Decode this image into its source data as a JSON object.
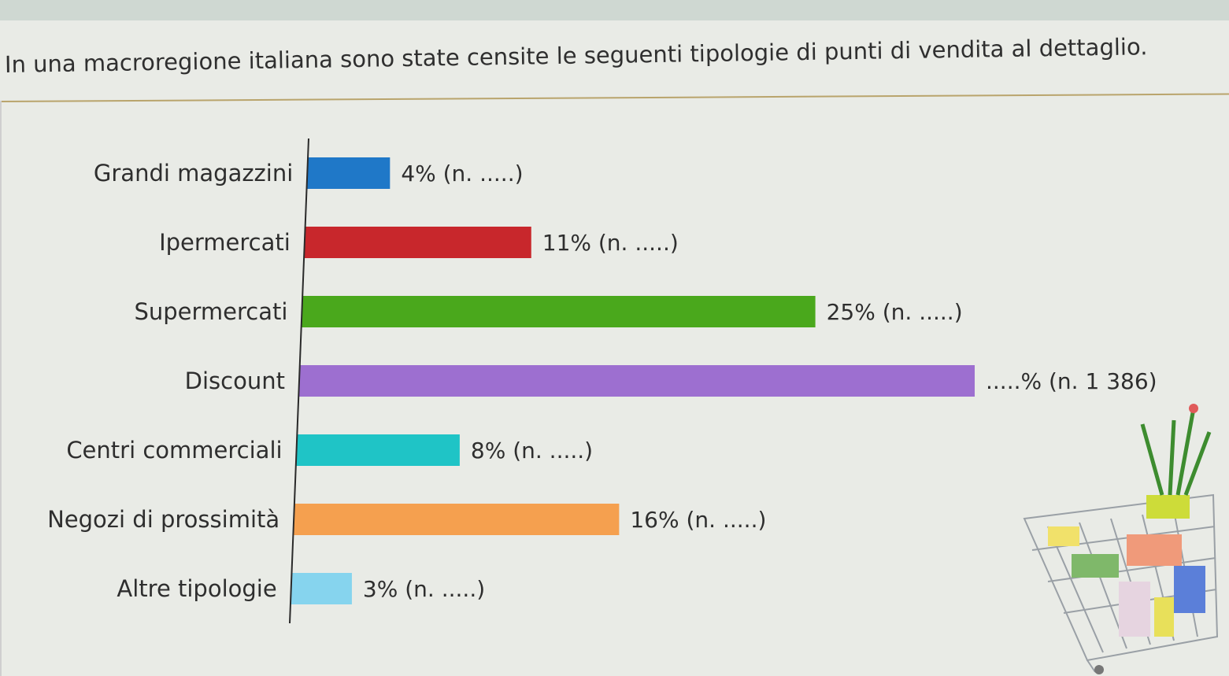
{
  "header": {
    "title": "In una macroregione italiana sono state censite le seguenti tipologie di punti di vendita al dettaglio."
  },
  "chart_data": {
    "type": "bar",
    "orientation": "horizontal",
    "categories": [
      "Grandi magazzini",
      "Ipermercati",
      "Supermercati",
      "Discount",
      "Centri commerciali",
      "Negozi di prossimità",
      "Altre tipologie"
    ],
    "values": [
      4,
      11,
      25,
      33,
      8,
      16,
      3
    ],
    "value_labels": [
      "4% (n. .....)",
      "11% (n. .....)",
      "25% (n. .....)",
      ".....% (n. 1 386)",
      "8% (n. .....)",
      "16% (n. .....)",
      "3% (n. .....)"
    ],
    "colors": [
      "#1f78c8",
      "#c8272c",
      "#4aa81c",
      "#9d6fd0",
      "#1fc4c6",
      "#f5a04f",
      "#86d4ee"
    ],
    "xlim": [
      0,
      33
    ],
    "title": "",
    "xlabel": "",
    "ylabel": "",
    "grid": false,
    "legend": "none"
  }
}
